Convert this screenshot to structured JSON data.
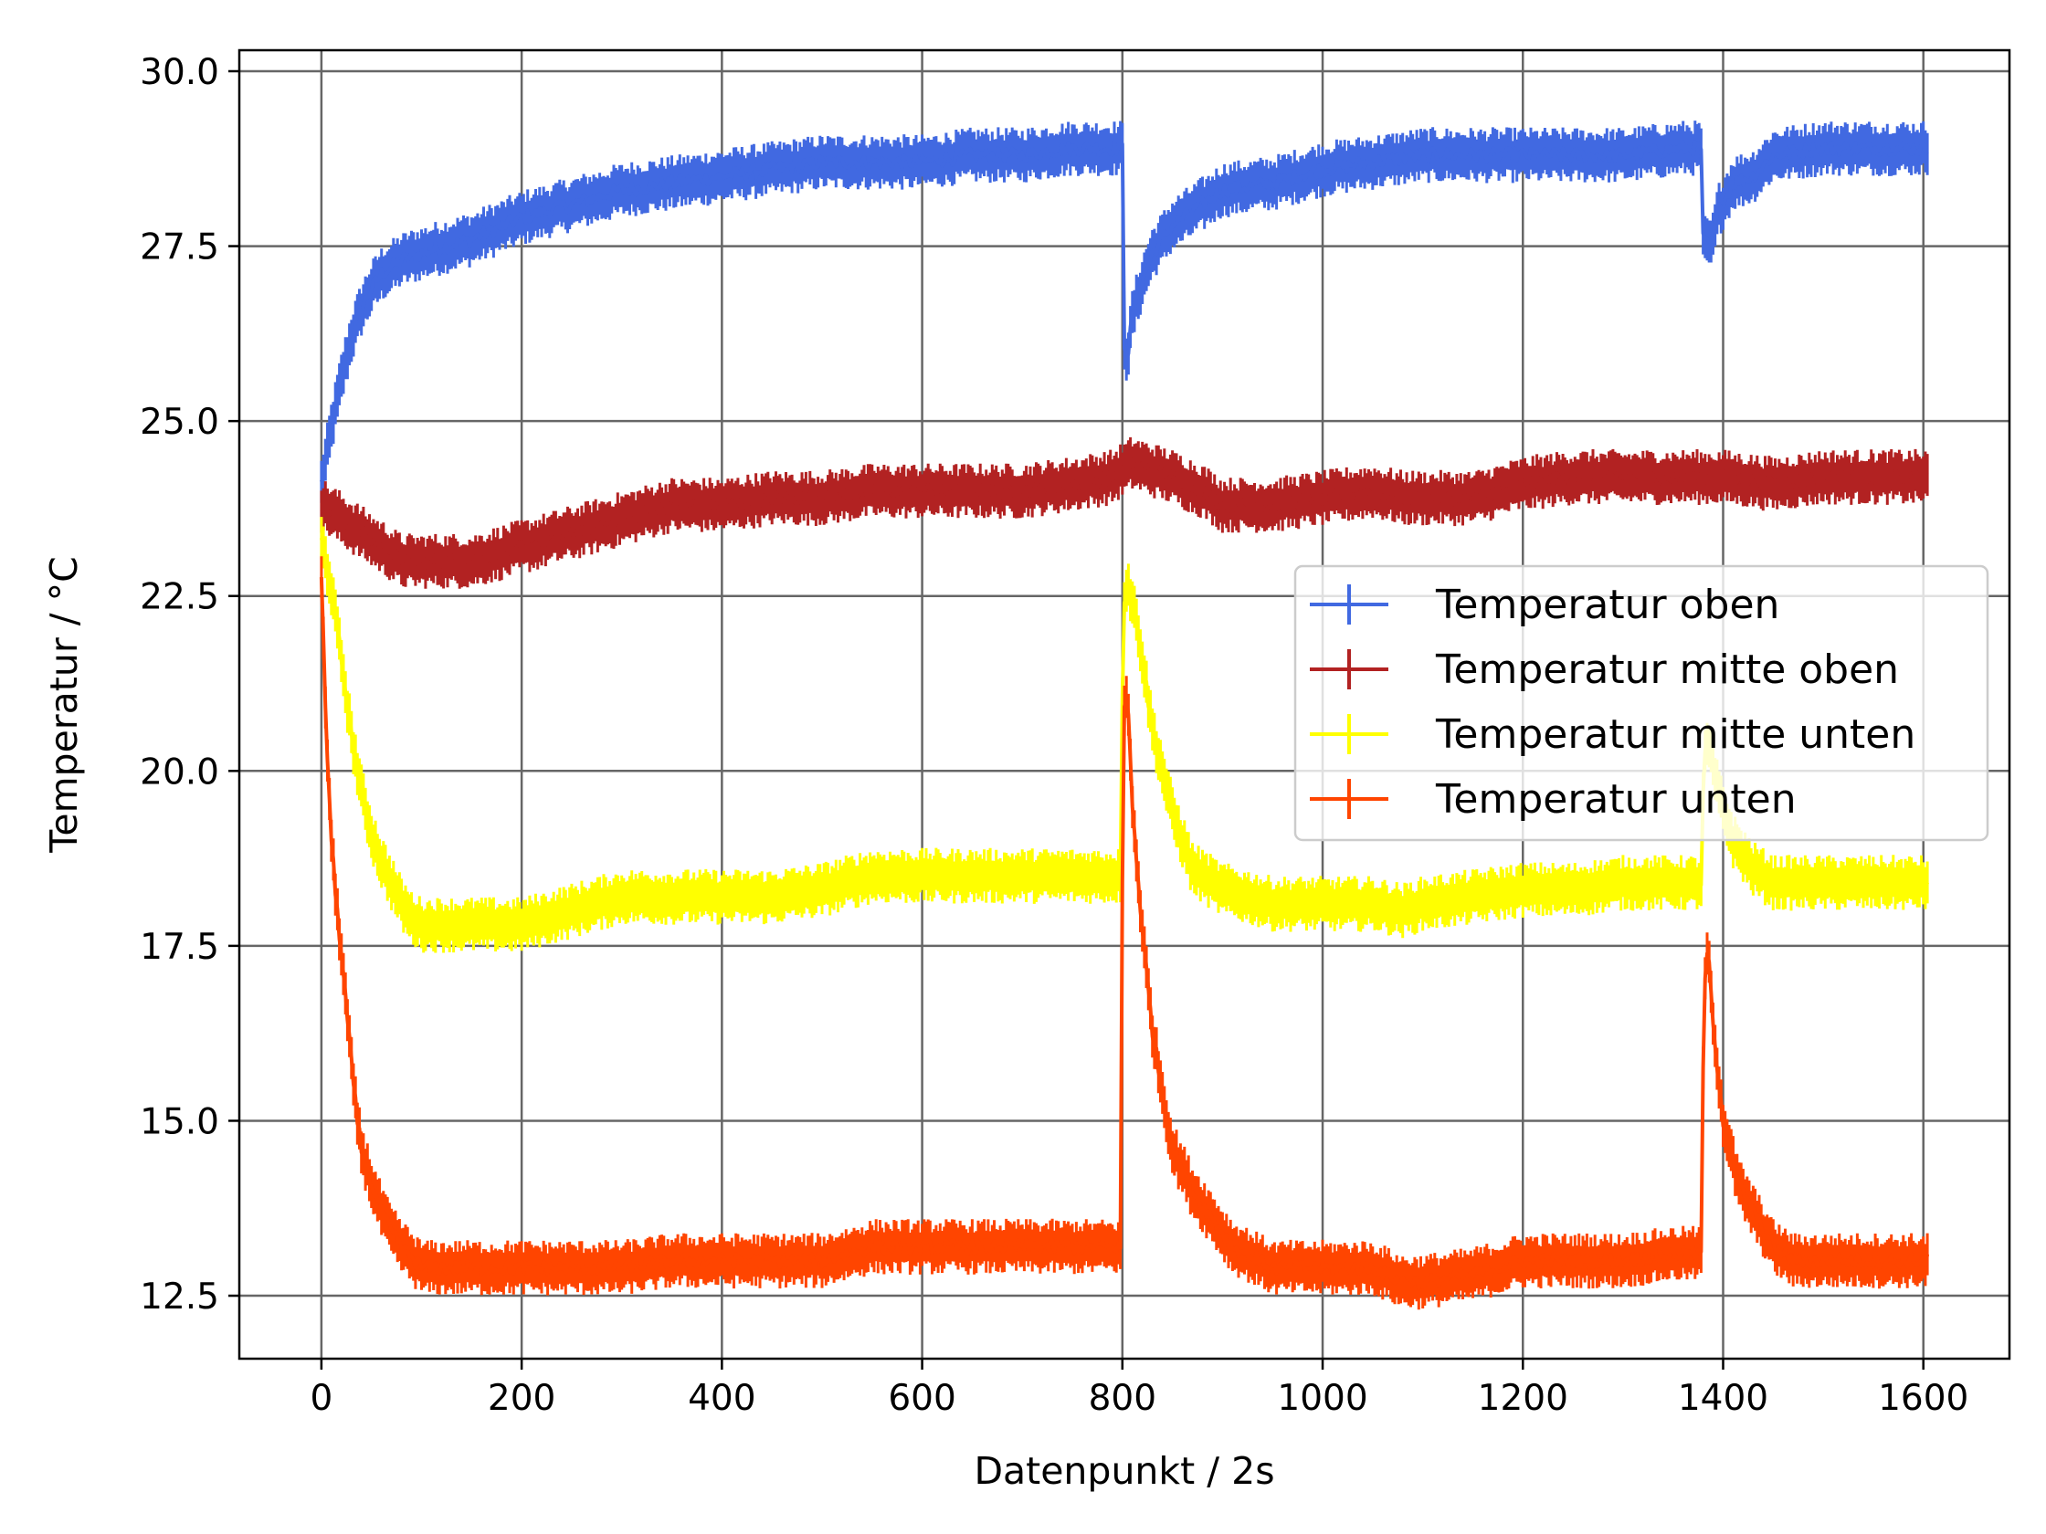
{
  "chart_data": {
    "type": "line",
    "title": "",
    "xlabel": "Datenpunkt / 2s",
    "ylabel": "Temperatur / °C",
    "xlim": [
      -82,
      1686
    ],
    "ylim": [
      11.6,
      30.3
    ],
    "x_ticks": [
      0,
      200,
      400,
      600,
      800,
      1000,
      1200,
      1400,
      1600
    ],
    "x_tick_labels": [
      "0",
      "200",
      "400",
      "600",
      "800",
      "1000",
      "1200",
      "1400",
      "1600"
    ],
    "y_ticks": [
      12.5,
      15.0,
      17.5,
      20.0,
      22.5,
      25.0,
      27.5,
      30.0
    ],
    "y_tick_labels": [
      "12.5",
      "15.0",
      "17.5",
      "20.0",
      "22.5",
      "25.0",
      "27.5",
      "30.0"
    ],
    "grid": true,
    "legend_position": "center-right",
    "series": [
      {
        "name": "Temperatur oben",
        "color": "#4169E1",
        "error_bar": 0.3,
        "points": [
          [
            0,
            24.1
          ],
          [
            10,
            24.9
          ],
          [
            20,
            25.6
          ],
          [
            30,
            26.2
          ],
          [
            40,
            26.6
          ],
          [
            50,
            26.9
          ],
          [
            60,
            27.1
          ],
          [
            80,
            27.3
          ],
          [
            100,
            27.4
          ],
          [
            150,
            27.6
          ],
          [
            200,
            27.9
          ],
          [
            250,
            28.1
          ],
          [
            300,
            28.3
          ],
          [
            350,
            28.4
          ],
          [
            400,
            28.5
          ],
          [
            450,
            28.6
          ],
          [
            500,
            28.7
          ],
          [
            550,
            28.7
          ],
          [
            600,
            28.7
          ],
          [
            650,
            28.8
          ],
          [
            700,
            28.8
          ],
          [
            750,
            28.9
          ],
          [
            790,
            28.9
          ],
          [
            800,
            28.9
          ],
          [
            802,
            26.1
          ],
          [
            805,
            25.9
          ],
          [
            810,
            26.5
          ],
          [
            820,
            27.0
          ],
          [
            830,
            27.4
          ],
          [
            850,
            27.8
          ],
          [
            880,
            28.1
          ],
          [
            900,
            28.3
          ],
          [
            950,
            28.4
          ],
          [
            1000,
            28.6
          ],
          [
            1050,
            28.7
          ],
          [
            1100,
            28.8
          ],
          [
            1150,
            28.8
          ],
          [
            1200,
            28.8
          ],
          [
            1250,
            28.8
          ],
          [
            1300,
            28.8
          ],
          [
            1360,
            28.9
          ],
          [
            1378,
            28.9
          ],
          [
            1380,
            27.6
          ],
          [
            1385,
            27.5
          ],
          [
            1390,
            27.6
          ],
          [
            1395,
            28.0
          ],
          [
            1410,
            28.4
          ],
          [
            1430,
            28.5
          ],
          [
            1450,
            28.8
          ],
          [
            1500,
            28.9
          ],
          [
            1550,
            28.9
          ],
          [
            1605,
            28.9
          ]
        ]
      },
      {
        "name": "Temperatur mitte oben",
        "color": "#B22222",
        "error_bar": 0.3,
        "points": [
          [
            0,
            23.8
          ],
          [
            20,
            23.6
          ],
          [
            40,
            23.4
          ],
          [
            60,
            23.2
          ],
          [
            80,
            23.0
          ],
          [
            100,
            23.0
          ],
          [
            150,
            23.0
          ],
          [
            200,
            23.2
          ],
          [
            250,
            23.4
          ],
          [
            300,
            23.6
          ],
          [
            350,
            23.8
          ],
          [
            400,
            23.8
          ],
          [
            450,
            23.9
          ],
          [
            500,
            23.9
          ],
          [
            550,
            24.0
          ],
          [
            600,
            24.0
          ],
          [
            650,
            24.0
          ],
          [
            700,
            24.0
          ],
          [
            750,
            24.1
          ],
          [
            790,
            24.2
          ],
          [
            800,
            24.3
          ],
          [
            810,
            24.4
          ],
          [
            830,
            24.3
          ],
          [
            850,
            24.2
          ],
          [
            880,
            24.0
          ],
          [
            900,
            23.8
          ],
          [
            950,
            23.8
          ],
          [
            1000,
            23.9
          ],
          [
            1050,
            24.0
          ],
          [
            1080,
            23.9
          ],
          [
            1100,
            23.9
          ],
          [
            1150,
            23.9
          ],
          [
            1200,
            24.1
          ],
          [
            1250,
            24.2
          ],
          [
            1300,
            24.2
          ],
          [
            1350,
            24.2
          ],
          [
            1400,
            24.2
          ],
          [
            1450,
            24.1
          ],
          [
            1500,
            24.2
          ],
          [
            1550,
            24.2
          ],
          [
            1605,
            24.2
          ]
        ]
      },
      {
        "name": "Temperatur mitte unten",
        "color": "#FFFF00",
        "error_bar": 0.3,
        "points": [
          [
            0,
            23.3
          ],
          [
            10,
            22.6
          ],
          [
            20,
            21.6
          ],
          [
            30,
            20.5
          ],
          [
            40,
            19.7
          ],
          [
            50,
            19.1
          ],
          [
            60,
            18.7
          ],
          [
            70,
            18.4
          ],
          [
            80,
            18.1
          ],
          [
            90,
            17.9
          ],
          [
            100,
            17.8
          ],
          [
            150,
            17.8
          ],
          [
            200,
            17.8
          ],
          [
            250,
            18.0
          ],
          [
            300,
            18.2
          ],
          [
            350,
            18.2
          ],
          [
            400,
            18.2
          ],
          [
            450,
            18.2
          ],
          [
            500,
            18.3
          ],
          [
            550,
            18.5
          ],
          [
            600,
            18.5
          ],
          [
            650,
            18.5
          ],
          [
            700,
            18.5
          ],
          [
            750,
            18.5
          ],
          [
            798,
            18.5
          ],
          [
            801,
            22.4
          ],
          [
            805,
            22.7
          ],
          [
            815,
            22.1
          ],
          [
            830,
            20.6
          ],
          [
            850,
            19.4
          ],
          [
            870,
            18.6
          ],
          [
            900,
            18.3
          ],
          [
            950,
            18.1
          ],
          [
            1000,
            18.1
          ],
          [
            1050,
            18.1
          ],
          [
            1080,
            18.0
          ],
          [
            1100,
            18.1
          ],
          [
            1150,
            18.2
          ],
          [
            1200,
            18.3
          ],
          [
            1250,
            18.3
          ],
          [
            1300,
            18.4
          ],
          [
            1350,
            18.4
          ],
          [
            1378,
            18.4
          ],
          [
            1381,
            20.2
          ],
          [
            1385,
            20.4
          ],
          [
            1395,
            19.7
          ],
          [
            1410,
            19.0
          ],
          [
            1430,
            18.6
          ],
          [
            1450,
            18.4
          ],
          [
            1500,
            18.4
          ],
          [
            1550,
            18.4
          ],
          [
            1605,
            18.4
          ]
        ]
      },
      {
        "name": "Temperatur unten",
        "color": "#FF4500",
        "error_bar": 0.3,
        "points": [
          [
            0,
            22.7
          ],
          [
            5,
            20.5
          ],
          [
            10,
            19.0
          ],
          [
            15,
            18.1
          ],
          [
            20,
            17.4
          ],
          [
            25,
            16.6
          ],
          [
            30,
            15.8
          ],
          [
            35,
            15.1
          ],
          [
            40,
            14.6
          ],
          [
            50,
            14.1
          ],
          [
            60,
            13.7
          ],
          [
            70,
            13.4
          ],
          [
            80,
            13.2
          ],
          [
            100,
            12.9
          ],
          [
            150,
            12.9
          ],
          [
            200,
            12.9
          ],
          [
            250,
            12.9
          ],
          [
            300,
            12.9
          ],
          [
            350,
            13.0
          ],
          [
            400,
            13.0
          ],
          [
            450,
            13.0
          ],
          [
            500,
            13.0
          ],
          [
            550,
            13.2
          ],
          [
            600,
            13.2
          ],
          [
            650,
            13.2
          ],
          [
            700,
            13.2
          ],
          [
            750,
            13.2
          ],
          [
            798,
            13.2
          ],
          [
            801,
            20.9
          ],
          [
            805,
            21.1
          ],
          [
            810,
            19.5
          ],
          [
            820,
            17.7
          ],
          [
            830,
            16.3
          ],
          [
            840,
            15.4
          ],
          [
            850,
            14.6
          ],
          [
            870,
            14.0
          ],
          [
            890,
            13.6
          ],
          [
            910,
            13.2
          ],
          [
            950,
            12.9
          ],
          [
            1000,
            12.9
          ],
          [
            1050,
            12.9
          ],
          [
            1080,
            12.7
          ],
          [
            1100,
            12.7
          ],
          [
            1150,
            12.8
          ],
          [
            1200,
            13.0
          ],
          [
            1250,
            13.0
          ],
          [
            1300,
            13.0
          ],
          [
            1350,
            13.1
          ],
          [
            1378,
            13.1
          ],
          [
            1381,
            17.0
          ],
          [
            1385,
            17.4
          ],
          [
            1392,
            16.1
          ],
          [
            1400,
            15.0
          ],
          [
            1415,
            14.1
          ],
          [
            1430,
            13.7
          ],
          [
            1450,
            13.2
          ],
          [
            1470,
            13.0
          ],
          [
            1500,
            13.0
          ],
          [
            1550,
            13.0
          ],
          [
            1605,
            13.0
          ]
        ]
      }
    ]
  }
}
